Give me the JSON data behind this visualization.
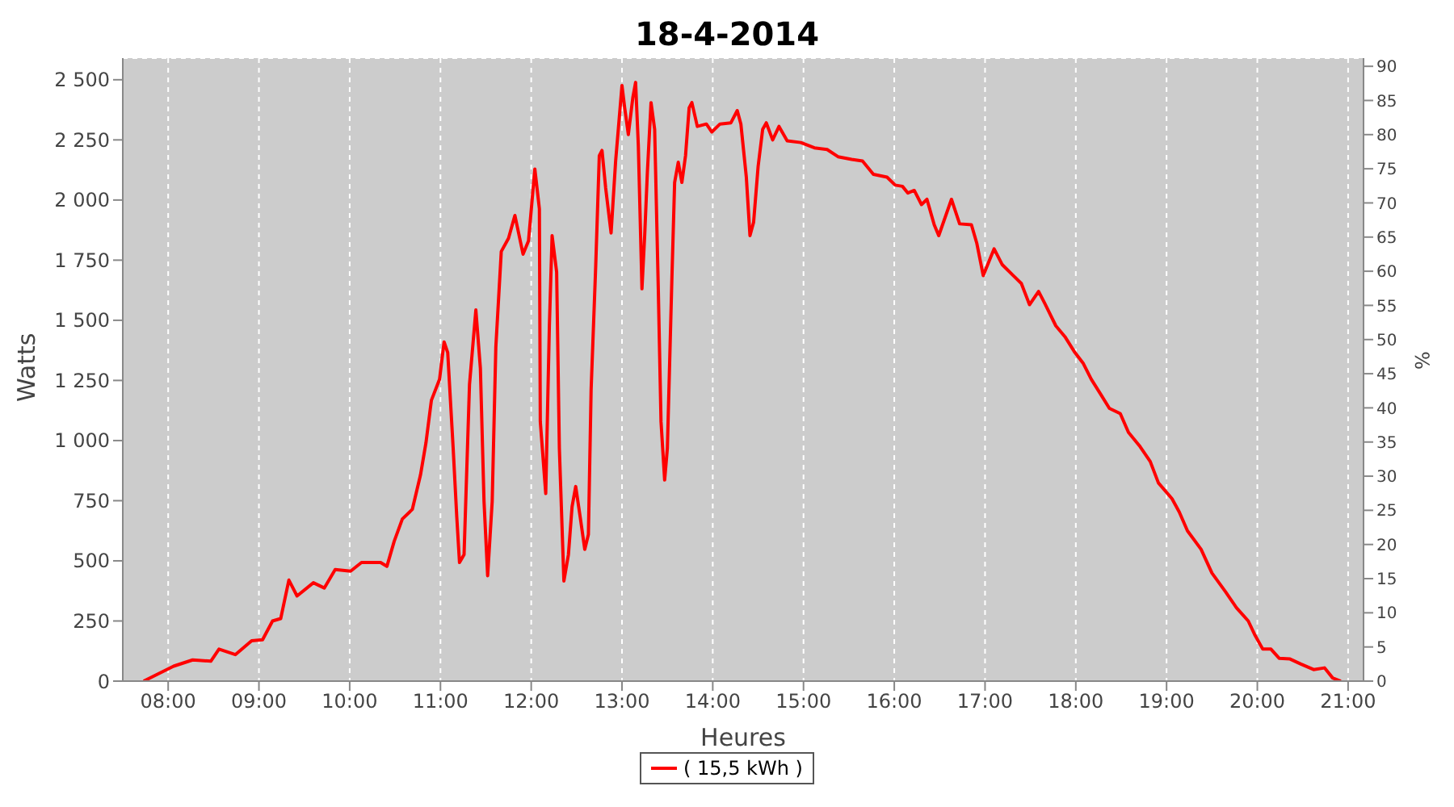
{
  "chart_data": {
    "type": "line",
    "title": "18-4-2014",
    "xlabel": "Heures",
    "ylabel": "Watts",
    "y2label": "%",
    "xlim": [
      7.5,
      21.17
    ],
    "xticks": [
      {
        "value": 8,
        "label": "08:00"
      },
      {
        "value": 9,
        "label": "09:00"
      },
      {
        "value": 10,
        "label": "10:00"
      },
      {
        "value": 11,
        "label": "11:00"
      },
      {
        "value": 12,
        "label": "12:00"
      },
      {
        "value": 13,
        "label": "13:00"
      },
      {
        "value": 14,
        "label": "14:00"
      },
      {
        "value": 15,
        "label": "15:00"
      },
      {
        "value": 16,
        "label": "16:00"
      },
      {
        "value": 17,
        "label": "17:00"
      },
      {
        "value": 18,
        "label": "18:00"
      },
      {
        "value": 19,
        "label": "19:00"
      },
      {
        "value": 20,
        "label": "20:00"
      },
      {
        "value": 21,
        "label": "21:00"
      }
    ],
    "ylim": [
      0,
      2590
    ],
    "yticks": [
      0,
      250,
      500,
      750,
      {
        "value": 1000,
        "label": "1 000"
      },
      {
        "value": 1250,
        "label": "1 250"
      },
      {
        "value": 1500,
        "label": "1 500"
      },
      {
        "value": 1750,
        "label": "1 750"
      },
      {
        "value": 2000,
        "label": "2 000"
      },
      {
        "value": 2250,
        "label": "2 250"
      },
      {
        "value": 2500,
        "label": "2 500"
      }
    ],
    "y2lim": [
      0,
      91.2
    ],
    "y2ticks": [
      0,
      5,
      10,
      15,
      20,
      25,
      30,
      35,
      40,
      45,
      50,
      55,
      60,
      65,
      70,
      75,
      80,
      85,
      90
    ],
    "grid": true,
    "legend": "bottom",
    "marker": "none",
    "line_style": "solid",
    "series": [
      {
        "name": "( 15,5 kWh )",
        "color": "#ff0000",
        "x": [
          7.73,
          8.06,
          8.27,
          8.47,
          8.56,
          8.74,
          8.92,
          9.04,
          9.15,
          9.24,
          9.33,
          9.42,
          9.6,
          9.72,
          9.84,
          10.01,
          10.13,
          10.34,
          10.41,
          10.49,
          10.58,
          10.69,
          10.78,
          10.84,
          10.9,
          10.99,
          11.04,
          11.08,
          11.14,
          11.18,
          11.21,
          11.26,
          11.32,
          11.39,
          11.44,
          11.48,
          11.52,
          11.57,
          11.61,
          11.67,
          11.75,
          11.82,
          11.91,
          11.97,
          12.04,
          12.09,
          12.1,
          12.16,
          12.2,
          12.23,
          12.28,
          12.31,
          12.36,
          12.41,
          12.45,
          12.49,
          12.54,
          12.59,
          12.63,
          12.66,
          12.71,
          12.75,
          12.78,
          12.82,
          12.88,
          12.93,
          13.0,
          13.03,
          13.07,
          13.12,
          13.15,
          13.18,
          13.22,
          13.25,
          13.28,
          13.32,
          13.36,
          13.4,
          13.43,
          13.47,
          13.5,
          13.55,
          13.58,
          13.62,
          13.66,
          13.7,
          13.74,
          13.77,
          13.83,
          13.93,
          13.99,
          14.08,
          14.2,
          14.27,
          14.31,
          14.37,
          14.41,
          14.45,
          14.5,
          14.55,
          14.59,
          14.66,
          14.73,
          14.82,
          14.97,
          15.12,
          15.26,
          15.38,
          15.53,
          15.65,
          15.77,
          15.92,
          16.01,
          16.09,
          16.15,
          16.22,
          16.3,
          16.36,
          16.44,
          16.49,
          16.63,
          16.72,
          16.85,
          16.91,
          16.98,
          17.1,
          17.19,
          17.31,
          17.4,
          17.49,
          17.59,
          17.66,
          17.78,
          17.88,
          17.99,
          18.08,
          18.17,
          18.28,
          18.37,
          18.49,
          18.58,
          18.7,
          18.82,
          18.91,
          19.06,
          19.14,
          19.23,
          19.38,
          19.5,
          19.65,
          19.77,
          19.9,
          19.97,
          20.06,
          20.15,
          20.24,
          20.36,
          20.48,
          20.62,
          20.74,
          20.83,
          20.92
        ],
        "values": [
          0,
          62,
          88,
          83,
          133,
          110,
          168,
          172,
          250,
          260,
          420,
          354,
          409,
          387,
          464,
          457,
          493,
          493,
          477,
          581,
          674,
          714,
          857,
          990,
          1167,
          1255,
          1410,
          1366,
          968,
          681,
          493,
          526,
          1233,
          1543,
          1300,
          747,
          438,
          747,
          1388,
          1786,
          1841,
          1936,
          1775,
          1830,
          2129,
          1963,
          1079,
          780,
          1477,
          1852,
          1701,
          968,
          416,
          526,
          725,
          809,
          681,
          548,
          610,
          1212,
          1720,
          2184,
          2206,
          2051,
          1863,
          2162,
          2476,
          2383,
          2272,
          2427,
          2489,
          2228,
          1631,
          1852,
          2117,
          2405,
          2294,
          1631,
          1079,
          836,
          968,
          1676,
          2073,
          2157,
          2073,
          2184,
          2383,
          2405,
          2306,
          2316,
          2283,
          2316,
          2321,
          2372,
          2316,
          2095,
          1852,
          1907,
          2140,
          2294,
          2321,
          2250,
          2306,
          2246,
          2239,
          2217,
          2210,
          2180,
          2169,
          2162,
          2107,
          2095,
          2062,
          2057,
          2029,
          2040,
          1981,
          2003,
          1897,
          1852,
          2003,
          1901,
          1897,
          1819,
          1686,
          1797,
          1731,
          1686,
          1653,
          1565,
          1620,
          1569,
          1477,
          1432,
          1366,
          1322,
          1255,
          1189,
          1134,
          1112,
          1034,
          979,
          913,
          824,
          758,
          703,
          625,
          548,
          449,
          371,
          305,
          250,
          194,
          133,
          133,
          95,
          92,
          71,
          48,
          55,
          13,
          0
        ]
      }
    ]
  }
}
